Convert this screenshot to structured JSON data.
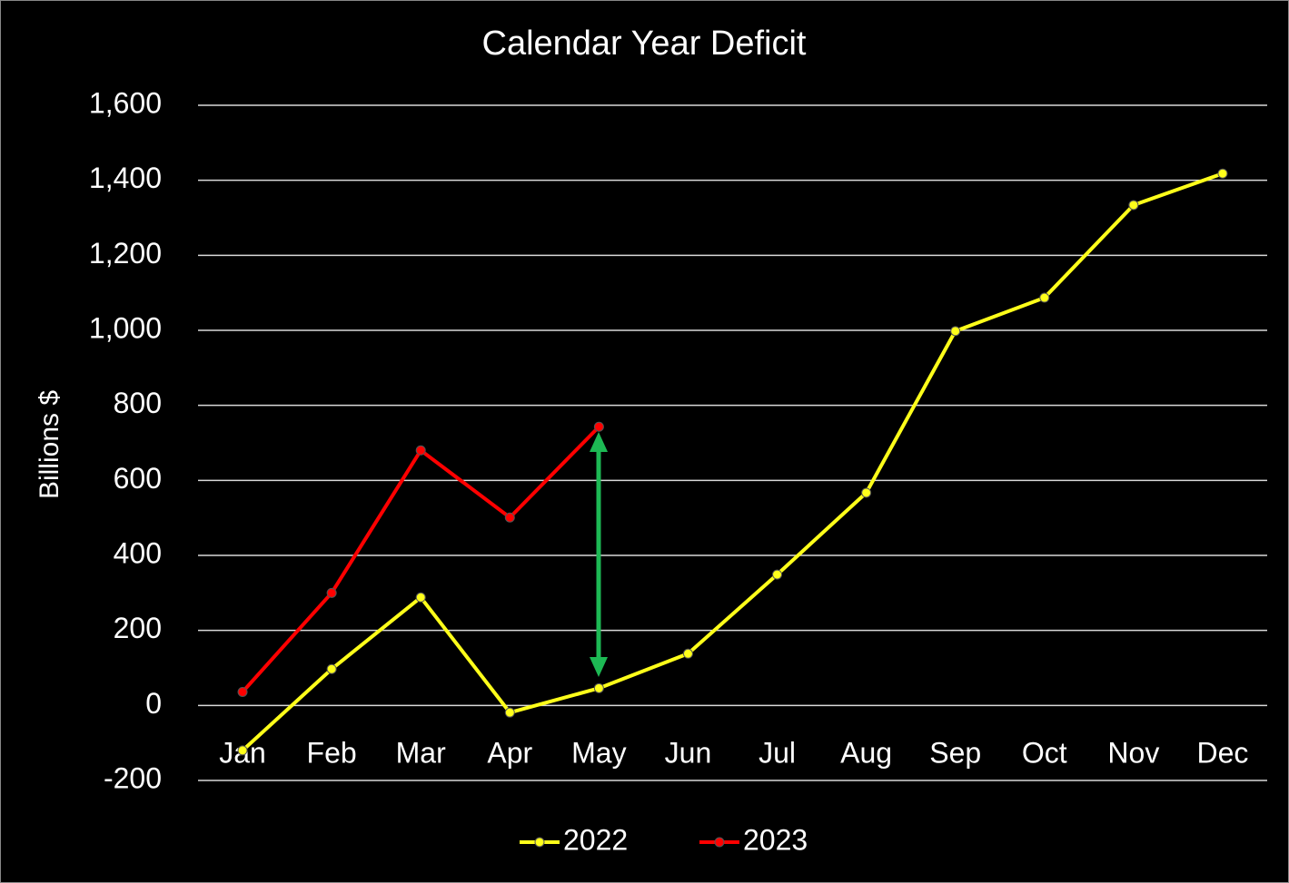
{
  "chart_data": {
    "type": "line",
    "title": "Calendar Year Deficit",
    "y_label": "Billions $",
    "categories": [
      "Jan",
      "Feb",
      "Mar",
      "Apr",
      "May",
      "Jun",
      "Jul",
      "Aug",
      "Sep",
      "Oct",
      "Nov",
      "Dec"
    ],
    "series": [
      {
        "name": "2022",
        "color": "#ffff1a",
        "values": [
          -120,
          97,
          288,
          -19,
          46,
          138,
          349,
          567,
          998,
          1087,
          1334,
          1418
        ]
      },
      {
        "name": "2023",
        "color": "#ff0000",
        "values": [
          36,
          300,
          680,
          501,
          743,
          null,
          null,
          null,
          null,
          null,
          null,
          null
        ]
      }
    ],
    "ylim": [
      -200,
      1600
    ],
    "yticks": [
      -200,
      0,
      200,
      400,
      600,
      800,
      {
        "value": 1000,
        "label": "1,000"
      },
      {
        "value": 1200,
        "label": "1,200"
      },
      {
        "value": 1400,
        "label": "1,400"
      },
      {
        "value": 1600,
        "label": "1,600"
      }
    ],
    "grid": true,
    "legend": "bottom"
  }
}
